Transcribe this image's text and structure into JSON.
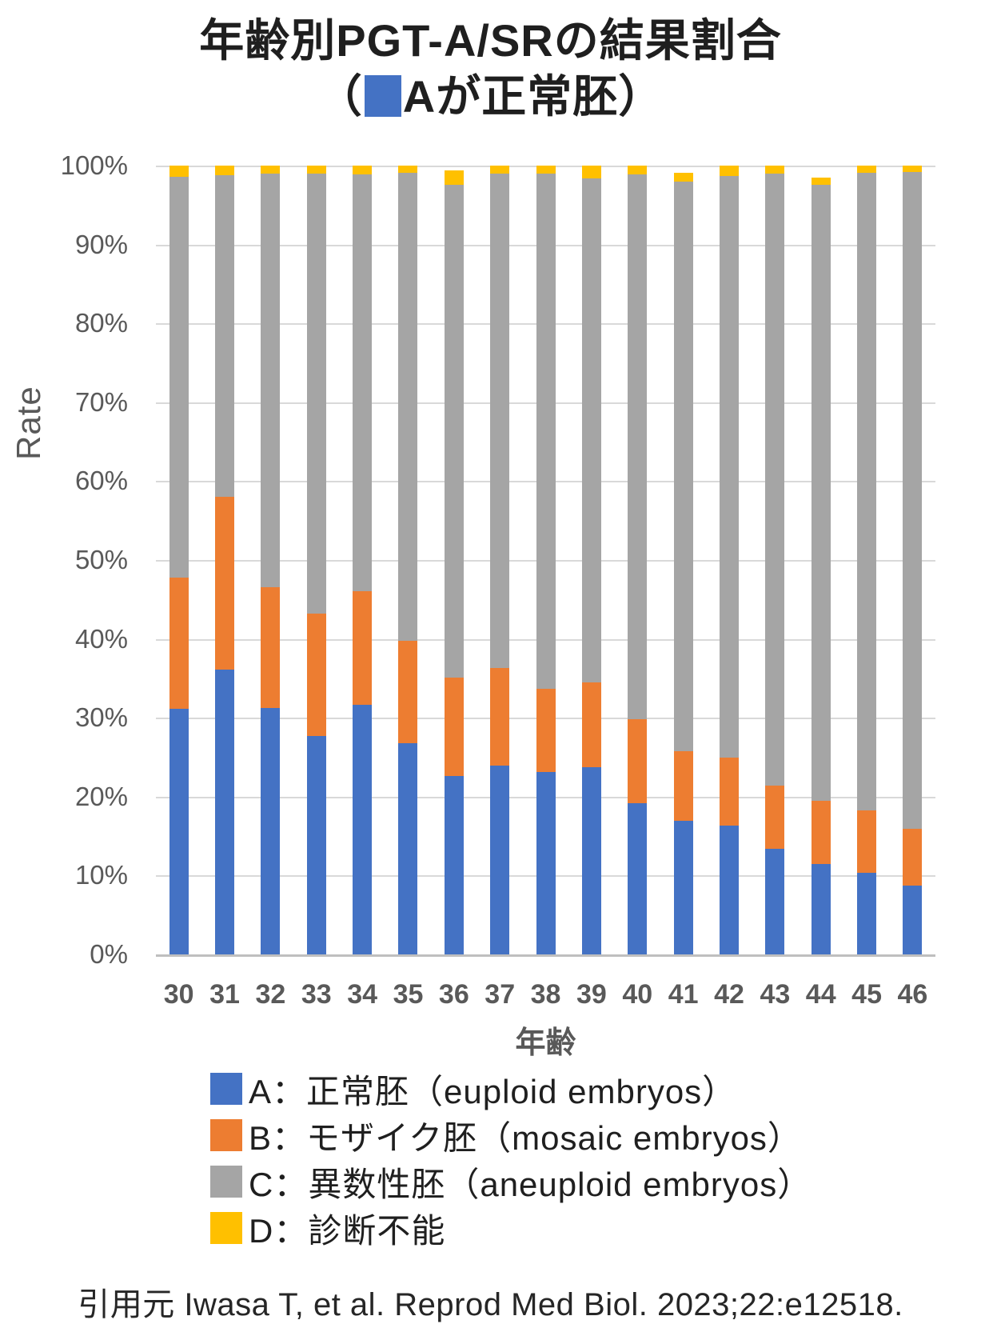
{
  "header": {
    "title_line1": "年齢別PGT-A/SRの結果割合",
    "title_line2_open": "（",
    "title_line2_text": "Aが正常胚）"
  },
  "footer": {
    "citation": "引用元 Iwasa T, et al. Reprod Med Biol. 2023;22:e12518."
  },
  "colors": {
    "series_a_blue": "#4472C4",
    "series_b_orange": "#ED7D31",
    "series_c_gray": "#A5A5A5",
    "series_d_yellow": "#FFC000",
    "gridline": "#D9D9D9",
    "axis_line": "#BFBFBF",
    "axis_text": "#595959",
    "title_text": "#1F1F1F"
  },
  "chart_data": {
    "type": "bar",
    "stacked": true,
    "percent_stacked": true,
    "title": "年齢別PGT-A/SRの結果割合（■Aが正常胚）",
    "xlabel": "年齢",
    "ylabel": "Rate",
    "grid": true,
    "legend_position": "bottom-left",
    "ylim": [
      0,
      100
    ],
    "y_ticks": [
      "100%",
      "90%",
      "80%",
      "70%",
      "60%",
      "50%",
      "40%",
      "30%",
      "20%",
      "10%",
      "0%"
    ],
    "categories": [
      "30",
      "31",
      "32",
      "33",
      "34",
      "35",
      "36",
      "37",
      "38",
      "39",
      "40",
      "41",
      "42",
      "43",
      "44",
      "45",
      "46"
    ],
    "series": [
      {
        "key": "A",
        "name": "A：正常胚（euploid embryos）",
        "color": "#4472C4",
        "values": [
          31.1,
          36.1,
          31.2,
          27.7,
          31.6,
          26.8,
          22.6,
          23.9,
          23.1,
          23.7,
          19.2,
          16.9,
          16.3,
          13.4,
          11.5,
          10.3,
          8.9
        ]
      },
      {
        "key": "B",
        "name": "B：モザイク胚（mosaic embryos）",
        "color": "#ED7D31",
        "values": [
          16.7,
          21.9,
          15.4,
          15.5,
          14.4,
          13.0,
          12.5,
          12.4,
          10.6,
          10.8,
          10.6,
          8.9,
          8.7,
          8.0,
          8.0,
          8.0,
          7.3
        ]
      },
      {
        "key": "C",
        "name": "C：異数性胚（aneuploid embryos）",
        "color": "#A5A5A5",
        "values": [
          50.8,
          40.8,
          52.4,
          55.8,
          52.9,
          59.3,
          62.5,
          62.7,
          65.3,
          63.9,
          69.1,
          72.2,
          73.7,
          77.6,
          78.1,
          80.8,
          85.0
        ]
      },
      {
        "key": "D",
        "name": "D：診断不能",
        "color": "#FFC000",
        "values": [
          1.4,
          1.2,
          1.0,
          1.0,
          1.1,
          0.9,
          1.8,
          1.0,
          1.0,
          1.6,
          1.1,
          1.1,
          1.3,
          1.0,
          0.9,
          0.9,
          0.8
        ]
      }
    ]
  }
}
